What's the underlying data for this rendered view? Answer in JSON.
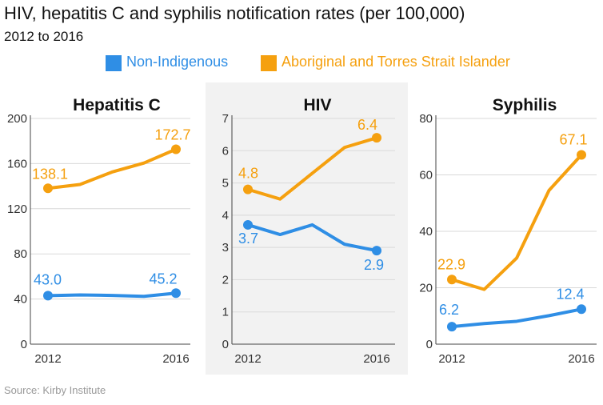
{
  "title": "HIV, hepatitis C and syphilis notification rates (per 100,000)",
  "subtitle": "2012 to 2016",
  "source": "Source: Kirby Institute",
  "colors": {
    "non_indigenous": "#2f8ee5",
    "indigenous": "#f5a00f",
    "panel_shade": "#f2f2f2",
    "grid": "#d9d9d9",
    "axis": "#444444"
  },
  "legend": [
    {
      "label": "Non-Indigenous",
      "color": "#2f8ee5"
    },
    {
      "label": "Aboriginal and Torres Strait Islander",
      "color": "#f5a00f"
    }
  ],
  "chart_data": [
    {
      "type": "line",
      "title": "Hepatitis C",
      "x": [
        2012,
        2013,
        2014,
        2015,
        2016
      ],
      "x_tick_labels": [
        "2012",
        "2016"
      ],
      "ylim": [
        0,
        200
      ],
      "y_ticks": [
        0,
        40,
        80,
        120,
        160,
        200
      ],
      "grid": true,
      "shaded": false,
      "series": [
        {
          "name": "Non-Indigenous",
          "values": [
            43.0,
            43.6,
            43.2,
            42.4,
            45.2
          ],
          "labels": [
            "43.0",
            "",
            "",
            "",
            "45.2"
          ],
          "color": "#2f8ee5"
        },
        {
          "name": "Aboriginal and Torres Strait Islander",
          "values": [
            138.1,
            141.5,
            152.5,
            160.5,
            172.7
          ],
          "labels": [
            "138.1",
            "",
            "",
            "",
            "172.7"
          ],
          "color": "#f5a00f"
        }
      ]
    },
    {
      "type": "line",
      "title": "HIV",
      "x": [
        2012,
        2013,
        2014,
        2015,
        2016
      ],
      "x_tick_labels": [
        "2012",
        "2016"
      ],
      "ylim": [
        0,
        7
      ],
      "y_ticks": [
        0,
        1,
        2,
        3,
        4,
        5,
        6,
        7
      ],
      "grid": true,
      "shaded": true,
      "series": [
        {
          "name": "Non-Indigenous",
          "values": [
            3.7,
            3.4,
            3.7,
            3.1,
            2.9
          ],
          "labels": [
            "3.7",
            "",
            "",
            "",
            "2.9"
          ],
          "color": "#2f8ee5"
        },
        {
          "name": "Aboriginal and Torres Strait Islander",
          "values": [
            4.8,
            4.5,
            5.3,
            6.1,
            6.4
          ],
          "labels": [
            "4.8",
            "",
            "",
            "",
            "6.4"
          ],
          "color": "#f5a00f"
        }
      ]
    },
    {
      "type": "line",
      "title": "Syphilis",
      "x": [
        2012,
        2013,
        2014,
        2015,
        2016
      ],
      "x_tick_labels": [
        "2012",
        "2016"
      ],
      "ylim": [
        0,
        80
      ],
      "y_ticks": [
        0,
        20,
        40,
        60,
        80
      ],
      "grid": true,
      "shaded": false,
      "series": [
        {
          "name": "Non-Indigenous",
          "values": [
            6.2,
            7.3,
            8.1,
            10.1,
            12.4
          ],
          "labels": [
            "6.2",
            "",
            "",
            "",
            "12.4"
          ],
          "color": "#2f8ee5"
        },
        {
          "name": "Aboriginal and Torres Strait Islander",
          "values": [
            22.9,
            19.4,
            30.5,
            54.5,
            67.1
          ],
          "labels": [
            "22.9",
            "",
            "",
            "",
            "67.1"
          ],
          "color": "#f5a00f"
        }
      ]
    }
  ]
}
